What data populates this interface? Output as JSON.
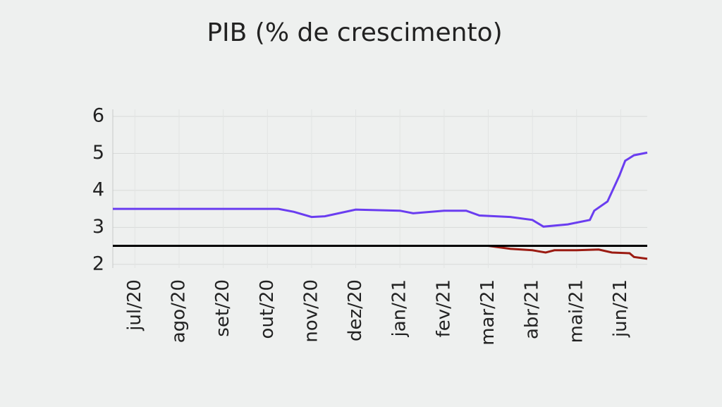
{
  "chart_data": {
    "type": "line",
    "title": "PIB (% de crescimento)",
    "xlim": [
      -0.5,
      11.6
    ],
    "xticks": [
      {
        "value": 0,
        "label": "jul/20"
      },
      {
        "value": 1,
        "label": "ago/20"
      },
      {
        "value": 2,
        "label": "set/20"
      },
      {
        "value": 3,
        "label": "out/20"
      },
      {
        "value": 4,
        "label": "nov/20"
      },
      {
        "value": 5,
        "label": "dez/20"
      },
      {
        "value": 6,
        "label": "jan/21"
      },
      {
        "value": 7,
        "label": "fev/21"
      },
      {
        "value": 8,
        "label": "mar/21"
      },
      {
        "value": 9,
        "label": "abr/21"
      },
      {
        "value": 10,
        "label": "mai/21"
      },
      {
        "value": 11,
        "label": "jun/21"
      }
    ],
    "ylim": [
      1.9,
      6
    ],
    "yticks": [
      2,
      3,
      4,
      5,
      6
    ],
    "grid": true,
    "reference_line": {
      "value": 2.5,
      "color": "#000000"
    },
    "series": [
      {
        "color": "#6a3df0",
        "x": [
          -0.5,
          3.25,
          3.6,
          4.0,
          4.3,
          5.0,
          6.0,
          6.3,
          7.0,
          7.5,
          7.8,
          8.5,
          9.0,
          9.25,
          9.8,
          10.3,
          10.4,
          10.7,
          10.97,
          11.1,
          11.3,
          11.6
        ],
        "values": [
          3.5,
          3.5,
          3.42,
          3.28,
          3.3,
          3.48,
          3.45,
          3.38,
          3.45,
          3.45,
          3.32,
          3.28,
          3.2,
          3.02,
          3.08,
          3.2,
          3.45,
          3.7,
          4.4,
          4.8,
          4.95,
          5.02
        ]
      },
      {
        "color": "#9b1b12",
        "x": [
          8.0,
          8.5,
          9.0,
          9.3,
          9.5,
          10.0,
          10.5,
          10.8,
          11.2,
          11.3,
          11.6
        ],
        "values": [
          2.5,
          2.42,
          2.38,
          2.32,
          2.38,
          2.38,
          2.4,
          2.32,
          2.3,
          2.2,
          2.15
        ]
      }
    ]
  }
}
